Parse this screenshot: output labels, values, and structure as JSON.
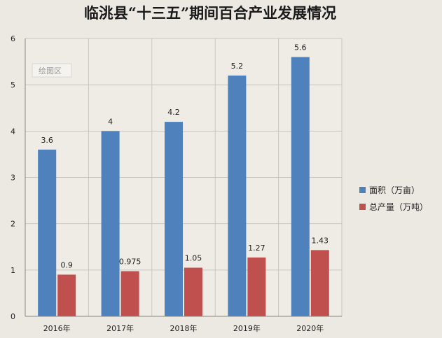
{
  "chart_data": {
    "type": "bar",
    "title": "临洮县“十三五”期间百合产业发展情况",
    "categories": [
      "2016年",
      "2017年",
      "2018年",
      "2019年",
      "2020年"
    ],
    "series": [
      {
        "name": "面积（万亩）",
        "color": "#4f81bd",
        "values": [
          3.6,
          4,
          4.2,
          5.2,
          5.6
        ],
        "labels": [
          "3.6",
          "4",
          "4.2",
          "5.2",
          "5.6"
        ]
      },
      {
        "name": "总产量（万吨）",
        "color": "#c0504d",
        "values": [
          0.9,
          0.975,
          1.05,
          1.27,
          1.43
        ],
        "labels": [
          "0.9",
          "0.975",
          "1.05",
          "1.27",
          "1.43"
        ]
      }
    ],
    "ylim": [
      0,
      6
    ],
    "yticks": [
      "0",
      "1",
      "2",
      "3",
      "4",
      "5",
      "6"
    ],
    "grid": true,
    "legend_position": "right",
    "plot_area_tag": "绘图区"
  }
}
